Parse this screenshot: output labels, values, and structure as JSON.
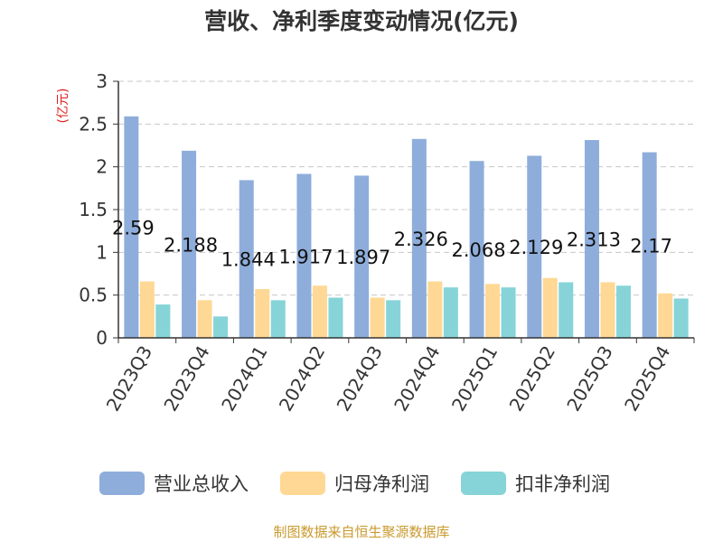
{
  "chart_data": {
    "type": "bar",
    "title": "营收、净利季度变动情况(亿元)",
    "ylabel": "(亿元)",
    "xlabel": "",
    "ylim": [
      0,
      3
    ],
    "yticks": [
      "0",
      "0.5",
      "1",
      "1.5",
      "2",
      "2.5",
      "3"
    ],
    "grid": true,
    "legend_position": "bottom",
    "categories": [
      "2023Q3",
      "2023Q4",
      "2024Q1",
      "2024Q2",
      "2024Q3",
      "2024Q4",
      "2025Q1",
      "2025Q2",
      "2025Q3",
      "2025Q4"
    ],
    "series": [
      {
        "name": "营业总收入",
        "color": "#8eaddb",
        "values": [
          2.59,
          2.188,
          1.844,
          1.917,
          1.897,
          2.326,
          2.068,
          2.129,
          2.313,
          2.17
        ],
        "labels": [
          "2.59",
          "2.188",
          "1.844",
          "1.917",
          "1.897",
          "2.326",
          "2.068",
          "2.129",
          "2.313",
          "2.17"
        ]
      },
      {
        "name": "归母净利润",
        "color": "#fed894",
        "values": [
          0.66,
          0.44,
          0.57,
          0.61,
          0.47,
          0.66,
          0.63,
          0.7,
          0.65,
          0.52
        ]
      },
      {
        "name": "扣非净利润",
        "color": "#86d4d8",
        "values": [
          0.39,
          0.25,
          0.44,
          0.47,
          0.44,
          0.59,
          0.59,
          0.65,
          0.61,
          0.46
        ]
      }
    ]
  },
  "footer": {
    "source": "制图数据来自恒生聚源数据库"
  }
}
